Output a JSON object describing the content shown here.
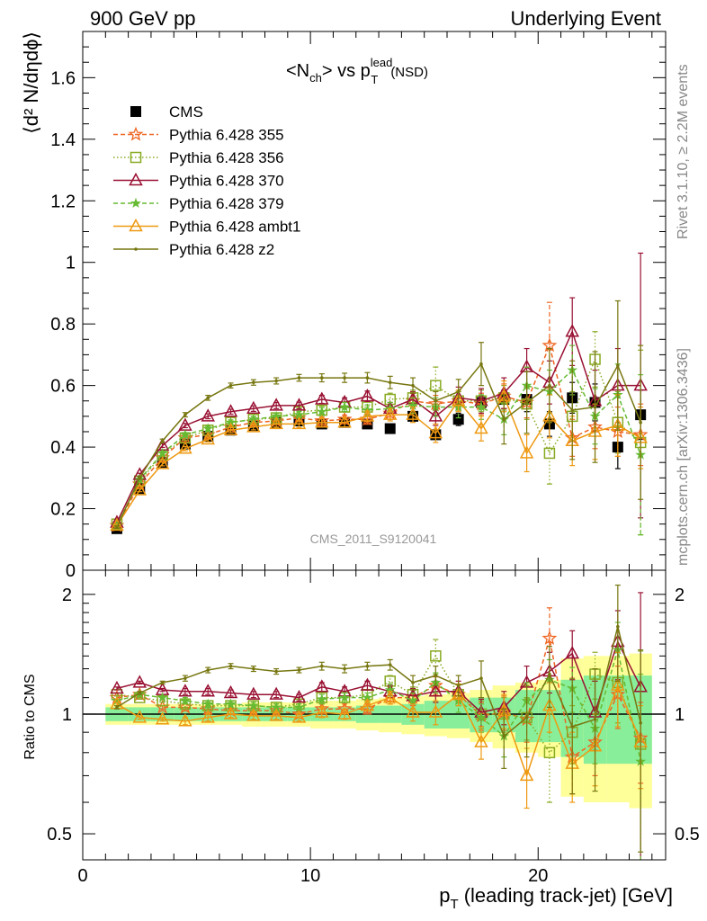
{
  "header": {
    "left": "900 GeV pp",
    "right": "Underlying Event"
  },
  "side_labels": {
    "rivet": "Rivet 3.1.10, ≥ 2.2M events",
    "mcplots": "mcplots.cern.ch [arXiv:1306.3436]"
  },
  "chart_data": [
    {
      "type": "scatter",
      "panel": "main",
      "title": {
        "main": "<N",
        "sub1": "ch",
        "mid": "> vs p",
        "sup": "lead",
        "sub2": "T",
        "tail": "(NSD)"
      },
      "ylabel": "⟨d² N/dηdϕ⟩",
      "watermark": "CMS_2011_S9120041",
      "xlim": [
        0,
        25.6
      ],
      "ylim": [
        0,
        1.75
      ],
      "yticks": [
        0,
        0.2,
        0.4,
        0.6,
        0.8,
        1,
        1.2,
        1.4,
        1.6
      ],
      "ytick_labels": [
        "0",
        "0.2",
        "0.4",
        "0.6",
        "0.8",
        "1",
        "1.2",
        "1.4",
        "1.6"
      ],
      "x": [
        1.5,
        2.5,
        3.5,
        4.5,
        5.5,
        6.5,
        7.5,
        8.5,
        9.5,
        10.5,
        11.5,
        12.5,
        13.5,
        14.5,
        15.5,
        16.5,
        17.5,
        18.5,
        19.5,
        20.5,
        21.5,
        22.5,
        23.5,
        24.5
      ],
      "legend": [
        "CMS",
        "Pythia 6.428 355",
        "Pythia 6.428 356",
        "Pythia 6.428 370",
        "Pythia 6.428 379",
        "Pythia 6.428 ambt1",
        "Pythia 6.428 z2"
      ],
      "series": [
        {
          "name": "CMS",
          "color": "#000000",
          "marker": "filled-square",
          "line": "none",
          "values": [
            0.135,
            0.265,
            0.35,
            0.41,
            0.435,
            0.455,
            0.47,
            0.48,
            0.485,
            0.475,
            0.48,
            0.475,
            0.46,
            0.5,
            0.44,
            0.49,
            0.545,
            0.555,
            0.555,
            0.475,
            0.56,
            0.545,
            0.4,
            0.505
          ],
          "err": [
            0.005,
            0.006,
            0.006,
            0.007,
            0.007,
            0.007,
            0.008,
            0.008,
            0.008,
            0.009,
            0.01,
            0.01,
            0.012,
            0.015,
            0.015,
            0.02,
            0.02,
            0.03,
            0.04,
            0.04,
            0.05,
            0.06,
            0.07,
            0.08
          ]
        },
        {
          "name": "Pythia 6.428 355",
          "color": "#ee6622",
          "marker": "star",
          "line": "dashed",
          "values": [
            0.145,
            0.28,
            0.365,
            0.43,
            0.44,
            0.465,
            0.48,
            0.485,
            0.495,
            0.485,
            0.49,
            0.49,
            0.51,
            0.55,
            0.54,
            0.55,
            0.54,
            0.565,
            0.545,
            0.73,
            0.43,
            0.465,
            0.45,
            0.44
          ],
          "err": [
            0.004,
            0.005,
            0.006,
            0.007,
            0.007,
            0.008,
            0.008,
            0.009,
            0.01,
            0.012,
            0.014,
            0.016,
            0.02,
            0.024,
            0.028,
            0.03,
            0.035,
            0.04,
            0.05,
            0.14,
            0.06,
            0.07,
            0.08,
            0.1
          ]
        },
        {
          "name": "Pythia 6.428 356",
          "color": "#88aa22",
          "marker": "open-square",
          "line": "dotted",
          "values": [
            0.15,
            0.29,
            0.375,
            0.43,
            0.455,
            0.48,
            0.49,
            0.495,
            0.515,
            0.52,
            0.53,
            0.53,
            0.555,
            0.56,
            0.6,
            0.55,
            0.55,
            0.56,
            0.54,
            0.38,
            0.5,
            0.685,
            0.48,
            0.415
          ],
          "err": [
            0.004,
            0.005,
            0.006,
            0.007,
            0.008,
            0.008,
            0.009,
            0.01,
            0.011,
            0.013,
            0.015,
            0.017,
            0.02,
            0.025,
            0.06,
            0.03,
            0.035,
            0.04,
            0.05,
            0.1,
            0.08,
            0.09,
            0.1,
            0.3
          ]
        },
        {
          "name": "Pythia 6.428 370",
          "color": "#991133",
          "marker": "open-triangle",
          "line": "solid",
          "values": [
            0.155,
            0.31,
            0.405,
            0.47,
            0.5,
            0.515,
            0.525,
            0.535,
            0.535,
            0.555,
            0.545,
            0.565,
            0.525,
            0.555,
            0.5,
            0.56,
            0.55,
            0.575,
            0.66,
            0.61,
            0.775,
            0.55,
            0.6,
            0.6
          ],
          "err": [
            0.004,
            0.005,
            0.006,
            0.007,
            0.008,
            0.008,
            0.009,
            0.01,
            0.011,
            0.013,
            0.015,
            0.017,
            0.02,
            0.025,
            0.03,
            0.035,
            0.04,
            0.05,
            0.06,
            0.07,
            0.11,
            0.1,
            0.12,
            0.43
          ]
        },
        {
          "name": "Pythia 6.428 379",
          "color": "#66bb33",
          "marker": "small-star",
          "line": "dashed",
          "values": [
            0.145,
            0.295,
            0.38,
            0.44,
            0.46,
            0.48,
            0.49,
            0.5,
            0.505,
            0.515,
            0.53,
            0.52,
            0.525,
            0.535,
            0.53,
            0.53,
            0.53,
            0.49,
            0.6,
            0.58,
            0.65,
            0.5,
            0.57,
            0.375
          ],
          "err": [
            0.004,
            0.005,
            0.006,
            0.007,
            0.008,
            0.008,
            0.009,
            0.01,
            0.011,
            0.013,
            0.015,
            0.017,
            0.02,
            0.025,
            0.03,
            0.035,
            0.04,
            0.05,
            0.06,
            0.07,
            0.08,
            0.09,
            0.1,
            0.26
          ]
        },
        {
          "name": "Pythia 6.428 ambt1",
          "color": "#ee9911",
          "marker": "open-triangle",
          "line": "solid",
          "values": [
            0.145,
            0.26,
            0.345,
            0.395,
            0.425,
            0.455,
            0.465,
            0.475,
            0.475,
            0.48,
            0.48,
            0.5,
            0.505,
            0.505,
            0.445,
            0.55,
            0.46,
            0.565,
            0.38,
            0.5,
            0.42,
            0.45,
            0.47,
            0.43
          ],
          "err": [
            0.004,
            0.005,
            0.006,
            0.007,
            0.008,
            0.008,
            0.009,
            0.01,
            0.011,
            0.013,
            0.015,
            0.017,
            0.02,
            0.025,
            0.03,
            0.035,
            0.04,
            0.05,
            0.06,
            0.07,
            0.08,
            0.09,
            0.1,
            0.1
          ]
        },
        {
          "name": "Pythia 6.428 z2",
          "color": "#777711",
          "marker": "dot",
          "line": "solid",
          "values": [
            0.14,
            0.3,
            0.42,
            0.505,
            0.56,
            0.6,
            0.61,
            0.615,
            0.625,
            0.625,
            0.625,
            0.625,
            0.61,
            0.6,
            0.55,
            0.58,
            0.67,
            0.49,
            0.545,
            0.6,
            0.52,
            0.53,
            0.665,
            0.48
          ],
          "err": [
            0.004,
            0.005,
            0.006,
            0.007,
            0.008,
            0.008,
            0.009,
            0.01,
            0.011,
            0.013,
            0.015,
            0.017,
            0.02,
            0.025,
            0.03,
            0.04,
            0.07,
            0.08,
            0.1,
            0.12,
            0.16,
            0.18,
            0.21,
            0.25
          ]
        }
      ]
    },
    {
      "type": "scatter",
      "panel": "ratio",
      "ylabel": "Ratio to CMS",
      "xlabel_main": "p",
      "xlabel_sub": "T",
      "xlabel_tail": "(leading track-jet) [GeV]",
      "xlim": [
        0,
        25.6
      ],
      "ylim": [
        0.43,
        2.3
      ],
      "log_y": true,
      "yticks": [
        0.5,
        1,
        2
      ],
      "ytick_labels": [
        "0.5",
        "1",
        "2"
      ],
      "xticks": [
        0,
        10,
        20
      ],
      "xtick_labels": [
        "0",
        "10",
        "20"
      ],
      "band_green_halfwidth": [
        0.04,
        0.04,
        0.04,
        0.04,
        0.04,
        0.04,
        0.04,
        0.04,
        0.04,
        0.04,
        0.04,
        0.05,
        0.05,
        0.06,
        0.08,
        0.08,
        0.1,
        0.1,
        0.15,
        0.15,
        0.22,
        0.25,
        0.25,
        0.25
      ],
      "band_yellow_halfwidth": [
        0.06,
        0.06,
        0.06,
        0.06,
        0.06,
        0.06,
        0.07,
        0.07,
        0.07,
        0.08,
        0.08,
        0.09,
        0.1,
        0.11,
        0.12,
        0.13,
        0.15,
        0.18,
        0.2,
        0.22,
        0.38,
        0.4,
        0.4,
        0.42
      ],
      "series": [
        {
          "name": "Pythia 6.428 355",
          "values": [
            1.1,
            1.12,
            1.04,
            1.04,
            1.03,
            1.02,
            1.02,
            1.02,
            1.0,
            1.03,
            1.03,
            1.03,
            1.1,
            1.1,
            1.18,
            1.12,
            0.99,
            1.01,
            0.97,
            1.55,
            0.78,
            0.85,
            1.12,
            0.87
          ],
          "err": [
            0.01,
            0.01,
            0.01,
            0.02,
            0.02,
            0.02,
            0.02,
            0.02,
            0.02,
            0.03,
            0.03,
            0.03,
            0.04,
            0.05,
            0.06,
            0.07,
            0.08,
            0.1,
            0.12,
            0.3,
            0.15,
            0.15,
            0.2,
            0.2
          ]
        },
        {
          "name": "Pythia 6.428 356",
          "values": [
            1.12,
            1.1,
            1.08,
            1.06,
            1.05,
            1.05,
            1.05,
            1.04,
            1.06,
            1.1,
            1.1,
            1.12,
            1.21,
            1.12,
            1.4,
            1.12,
            1.0,
            1.0,
            0.98,
            0.8,
            0.9,
            1.26,
            1.2,
            0.84
          ],
          "err": [
            0.01,
            0.01,
            0.01,
            0.02,
            0.02,
            0.02,
            0.02,
            0.02,
            0.02,
            0.03,
            0.03,
            0.03,
            0.04,
            0.05,
            0.14,
            0.07,
            0.08,
            0.1,
            0.12,
            0.2,
            0.15,
            0.17,
            0.25,
            0.6
          ]
        },
        {
          "name": "Pythia 6.428 370",
          "values": [
            1.16,
            1.2,
            1.15,
            1.14,
            1.14,
            1.13,
            1.12,
            1.12,
            1.1,
            1.17,
            1.14,
            1.18,
            1.14,
            1.11,
            1.14,
            1.14,
            1.01,
            1.04,
            1.2,
            1.28,
            1.42,
            1.01,
            1.52,
            1.17
          ],
          "err": [
            0.01,
            0.01,
            0.01,
            0.02,
            0.02,
            0.02,
            0.02,
            0.02,
            0.02,
            0.03,
            0.03,
            0.03,
            0.04,
            0.05,
            0.07,
            0.07,
            0.08,
            0.1,
            0.12,
            0.15,
            0.2,
            0.2,
            0.3,
            0.85
          ]
        },
        {
          "name": "Pythia 6.428 379",
          "values": [
            1.08,
            1.12,
            1.1,
            1.08,
            1.06,
            1.06,
            1.05,
            1.04,
            1.04,
            1.09,
            1.1,
            1.1,
            1.15,
            1.08,
            1.2,
            1.08,
            0.98,
            0.88,
            1.08,
            1.22,
            1.16,
            0.92,
            1.45,
            0.76
          ],
          "err": [
            0.01,
            0.01,
            0.01,
            0.02,
            0.02,
            0.02,
            0.02,
            0.02,
            0.02,
            0.03,
            0.03,
            0.03,
            0.04,
            0.05,
            0.07,
            0.07,
            0.08,
            0.1,
            0.12,
            0.15,
            0.15,
            0.17,
            0.25,
            0.5
          ]
        },
        {
          "name": "Pythia 6.428 ambt1",
          "values": [
            1.06,
            0.98,
            0.97,
            0.96,
            0.98,
            1.0,
            0.99,
            0.99,
            0.98,
            1.01,
            1.0,
            1.05,
            1.1,
            1.01,
            1.01,
            1.12,
            0.85,
            1.02,
            0.7,
            1.05,
            0.75,
            0.83,
            1.18,
            0.85
          ],
          "err": [
            0.01,
            0.01,
            0.01,
            0.02,
            0.02,
            0.02,
            0.02,
            0.02,
            0.02,
            0.03,
            0.03,
            0.03,
            0.04,
            0.05,
            0.07,
            0.07,
            0.08,
            0.1,
            0.12,
            0.15,
            0.15,
            0.17,
            0.25,
            0.2
          ]
        },
        {
          "name": "Pythia 6.428 z2",
          "values": [
            1.04,
            1.13,
            1.2,
            1.23,
            1.29,
            1.32,
            1.3,
            1.28,
            1.29,
            1.32,
            1.3,
            1.32,
            1.33,
            1.2,
            1.25,
            1.18,
            1.23,
            0.88,
            0.98,
            1.26,
            0.93,
            0.97,
            1.66,
            0.95
          ],
          "err": [
            0.01,
            0.01,
            0.01,
            0.02,
            0.02,
            0.02,
            0.02,
            0.02,
            0.02,
            0.03,
            0.03,
            0.03,
            0.04,
            0.05,
            0.07,
            0.07,
            0.13,
            0.15,
            0.2,
            0.22,
            0.3,
            0.33,
            0.45,
            0.5
          ]
        }
      ]
    }
  ]
}
